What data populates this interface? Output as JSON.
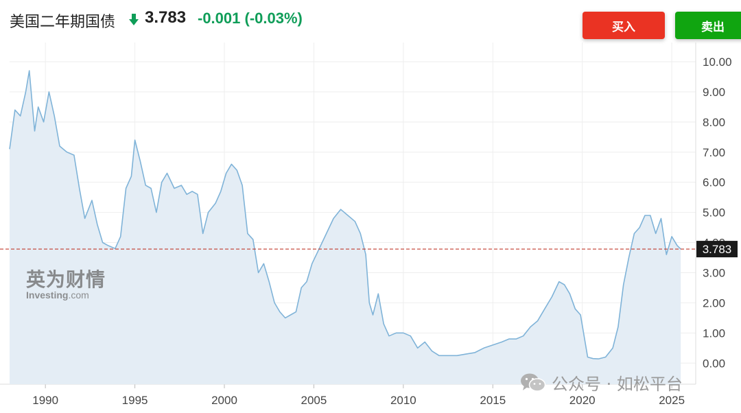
{
  "header": {
    "instrument": "美国二年期国债",
    "price": "3.783",
    "change": "-0.001 (-0.03%)",
    "buy_label": "买入",
    "sell_label": "卖出",
    "down_color": "#0f9d58",
    "buy_color": "#ea3323",
    "sell_color": "#10a510"
  },
  "watermark": {
    "brand_cn": "英为财情",
    "brand_en": "Investing",
    "brand_domain": ".com"
  },
  "publisher": {
    "icon": "wechat-icon",
    "text": "公众号 · 如松平台"
  },
  "chart_data": {
    "type": "area",
    "title": "",
    "xlabel": "",
    "ylabel": "",
    "xlim": [
      1988.0,
      2025.8
    ],
    "ylim": [
      -0.7,
      10.5
    ],
    "x_ticks": [
      "1990",
      "1995",
      "2000",
      "2005",
      "2010",
      "2015",
      "2020",
      "2025"
    ],
    "y_ticks": [
      "0.00",
      "1.00",
      "2.00",
      "3.00",
      "4.00",
      "5.00",
      "6.00",
      "7.00",
      "8.00",
      "9.00",
      "10.00"
    ],
    "current_value": 3.783,
    "current_label": "3.783",
    "line_color": "#7fb3d8",
    "fill_color": "#e4edf5",
    "ref_line_color": "#c0392b",
    "grid": true,
    "series": [
      {
        "x": [
          1988.0,
          1988.3,
          1988.6,
          1988.9,
          1989.1,
          1989.4,
          1989.6,
          1989.9,
          1990.2,
          1990.5,
          1990.8,
          1991.2,
          1991.6,
          1991.9,
          1992.2,
          1992.6,
          1992.9,
          1993.2,
          1993.5,
          1993.9,
          1994.2,
          1994.5,
          1994.8,
          1995.0,
          1995.3,
          1995.6,
          1995.9,
          1996.2,
          1996.5,
          1996.8,
          1997.2,
          1997.6,
          1997.9,
          1998.2,
          1998.5,
          1998.8,
          1999.1,
          1999.5,
          1999.8,
          2000.1,
          2000.4,
          2000.7,
          2001.0,
          2001.3,
          2001.6,
          2001.9,
          2002.2,
          2002.5,
          2002.8,
          2003.1,
          2003.4,
          2003.7,
          2004.0,
          2004.3,
          2004.6,
          2004.9,
          2005.3,
          2005.7,
          2006.1,
          2006.5,
          2006.9,
          2007.3,
          2007.6,
          2007.9,
          2008.1,
          2008.3,
          2008.6,
          2008.9,
          2009.2,
          2009.6,
          2010.0,
          2010.4,
          2010.8,
          2011.2,
          2011.6,
          2012.0,
          2012.5,
          2013.0,
          2013.5,
          2014.0,
          2014.5,
          2015.0,
          2015.5,
          2015.9,
          2016.3,
          2016.7,
          2017.1,
          2017.5,
          2017.9,
          2018.3,
          2018.7,
          2019.0,
          2019.3,
          2019.6,
          2019.9,
          2020.1,
          2020.3,
          2020.6,
          2020.9,
          2021.3,
          2021.7,
          2022.0,
          2022.3,
          2022.6,
          2022.9,
          2023.2,
          2023.5,
          2023.8,
          2024.1,
          2024.4,
          2024.7,
          2025.0,
          2025.3,
          2025.5
        ],
        "values": [
          7.1,
          8.4,
          8.2,
          9.0,
          9.7,
          7.7,
          8.5,
          8.0,
          9.0,
          8.2,
          7.2,
          7.0,
          6.9,
          5.8,
          4.8,
          5.4,
          4.6,
          4.0,
          3.9,
          3.8,
          4.2,
          5.8,
          6.2,
          7.4,
          6.7,
          5.9,
          5.8,
          5.0,
          6.0,
          6.3,
          5.8,
          5.9,
          5.6,
          5.7,
          5.6,
          4.3,
          5.0,
          5.3,
          5.7,
          6.3,
          6.6,
          6.4,
          5.9,
          4.3,
          4.1,
          3.0,
          3.3,
          2.7,
          2.0,
          1.7,
          1.5,
          1.6,
          1.7,
          2.5,
          2.7,
          3.3,
          3.8,
          4.3,
          4.8,
          5.1,
          4.9,
          4.7,
          4.3,
          3.6,
          2.0,
          1.6,
          2.3,
          1.3,
          0.9,
          1.0,
          1.0,
          0.9,
          0.5,
          0.7,
          0.4,
          0.25,
          0.25,
          0.25,
          0.3,
          0.35,
          0.5,
          0.6,
          0.7,
          0.8,
          0.8,
          0.9,
          1.2,
          1.4,
          1.8,
          2.2,
          2.7,
          2.6,
          2.3,
          1.8,
          1.6,
          0.9,
          0.2,
          0.15,
          0.14,
          0.2,
          0.5,
          1.2,
          2.6,
          3.5,
          4.3,
          4.5,
          4.9,
          4.9,
          4.3,
          4.8,
          3.6,
          4.2,
          3.9,
          3.783
        ]
      }
    ]
  }
}
